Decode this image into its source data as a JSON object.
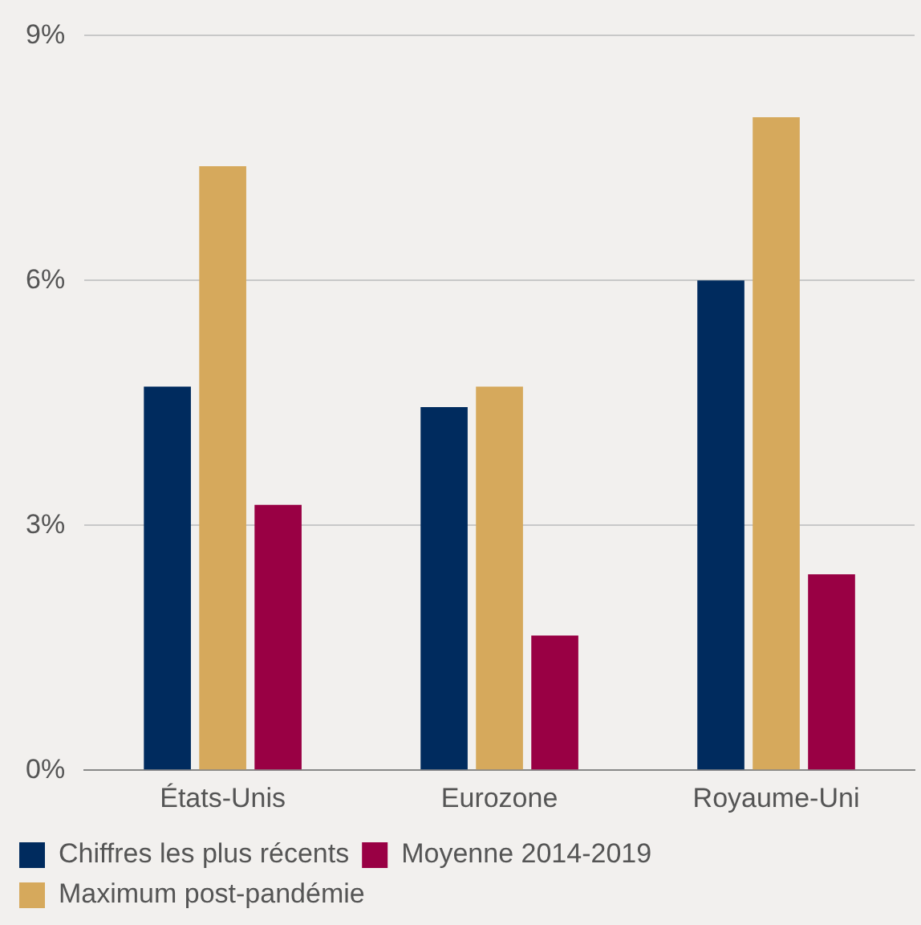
{
  "chart_data": {
    "type": "bar",
    "categories": [
      "États-Unis",
      "Eurozone",
      "Royaume-Uni"
    ],
    "series": [
      {
        "name": "Chiffres les plus récents",
        "color": "#002b5e",
        "values": [
          4.7,
          4.45,
          6.0
        ]
      },
      {
        "name": "Maximum post-pandémie",
        "color": "#d6a95c",
        "values": [
          7.4,
          4.7,
          8.0
        ]
      },
      {
        "name": "Moyenne 2014-2019",
        "color": "#990044",
        "values": [
          3.25,
          1.65,
          2.4
        ]
      }
    ],
    "ylim": [
      0,
      9
    ],
    "yticks": [
      {
        "value": 0,
        "label": "0%"
      },
      {
        "value": 3,
        "label": "3%"
      },
      {
        "value": 6,
        "label": "6%"
      },
      {
        "value": 9,
        "label": "9%"
      }
    ],
    "grid": "y",
    "legend": "bottom"
  }
}
